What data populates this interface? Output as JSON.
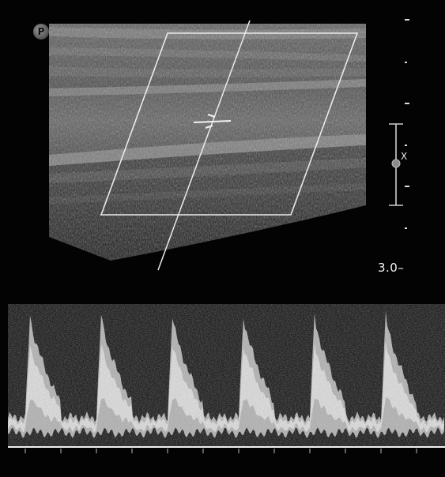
{
  "image": {
    "subject": "carotid-artery-duplex-ultrasound",
    "depth_scale_label": "3.0",
    "probe_orientation_marker": "P",
    "focal_marker_label": "X",
    "doppler_cycles_visible": 6,
    "colors": {
      "background": "#030303",
      "overlay_lines": "#f0f0f0",
      "vessel_lumen": "#5a5a5a",
      "tissue": "#7a7a7a"
    }
  }
}
